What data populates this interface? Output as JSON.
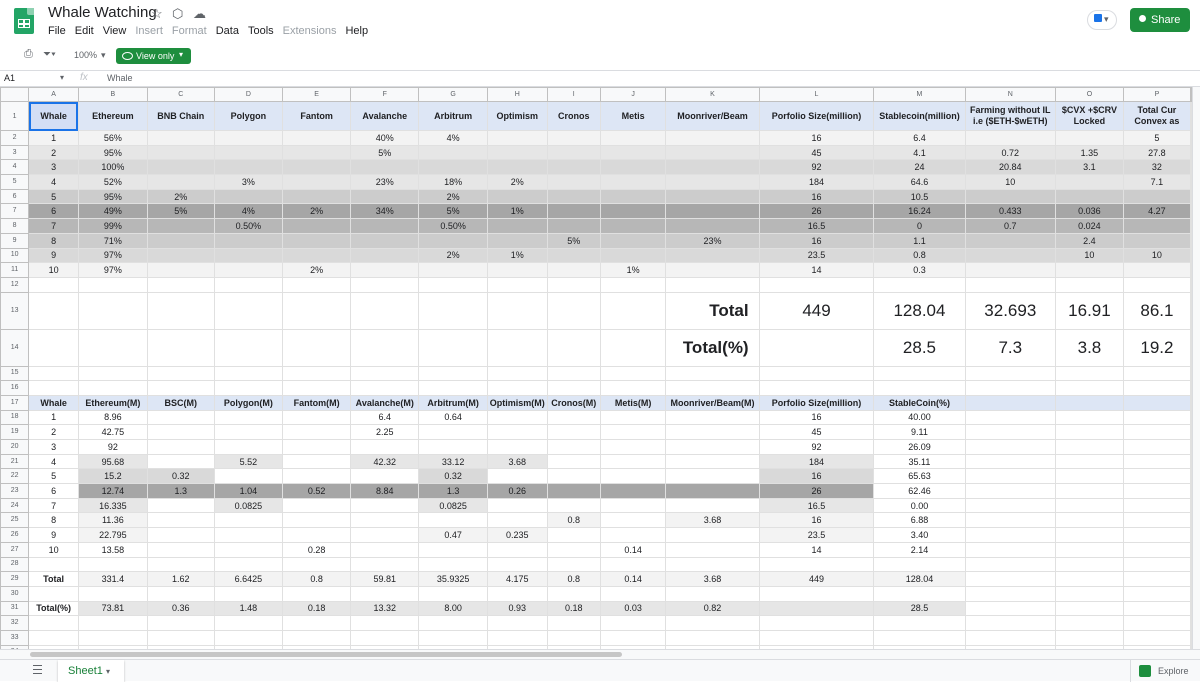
{
  "app": {
    "title": "Whale Watching",
    "menu": [
      "File",
      "Edit",
      "View",
      "Insert",
      "Format",
      "Data",
      "Tools",
      "Extensions",
      "Help"
    ],
    "share_label": "Share"
  },
  "toolbar": {
    "zoom": "100%",
    "view_mode": "View only"
  },
  "formula_bar": {
    "cell_ref": "A1",
    "fx": "fx",
    "content": "Whale"
  },
  "columns": [
    "A",
    "B",
    "C",
    "D",
    "E",
    "F",
    "G",
    "H",
    "I",
    "J",
    "K",
    "L",
    "M",
    "N",
    "O",
    "P"
  ],
  "table1": {
    "headers": [
      "Whale",
      "Ethereum",
      "BNB Chain",
      "Polygon",
      "Fantom",
      "Avalanche",
      "Arbitrum",
      "Optimism",
      "Cronos",
      "Metis",
      "Moonriver/Beam",
      "Porfolio Size(million)",
      "Stablecoin(million)",
      "Farming without IL i.e ($ETH-$wETH)",
      "$CVX +$CRV Locked",
      "Total Cur Convex as"
    ],
    "rows": [
      [
        "1",
        "56%",
        "",
        "",
        "",
        "40%",
        "4%",
        "",
        "",
        "",
        "",
        "16",
        "6.4",
        "",
        "",
        "5"
      ],
      [
        "2",
        "95%",
        "",
        "",
        "",
        "5%",
        "",
        "",
        "",
        "",
        "",
        "45",
        "4.1",
        "0.72",
        "1.35",
        "27.8"
      ],
      [
        "3",
        "100%",
        "",
        "",
        "",
        "",
        "",
        "",
        "",
        "",
        "",
        "92",
        "24",
        "20.84",
        "3.1",
        "32"
      ],
      [
        "4",
        "52%",
        "",
        "3%",
        "",
        "23%",
        "18%",
        "2%",
        "",
        "",
        "",
        "184",
        "64.6",
        "10",
        "",
        "7.1"
      ],
      [
        "5",
        "95%",
        "2%",
        "",
        "",
        "",
        "2%",
        "",
        "",
        "",
        "",
        "16",
        "10.5",
        "",
        "",
        ""
      ],
      [
        "6",
        "49%",
        "5%",
        "4%",
        "2%",
        "34%",
        "5%",
        "1%",
        "",
        "",
        "",
        "26",
        "16.24",
        "0.433",
        "0.036",
        "4.27"
      ],
      [
        "7",
        "99%",
        "",
        "0.50%",
        "",
        "",
        "0.50%",
        "",
        "",
        "",
        "",
        "16.5",
        "0",
        "0.7",
        "0.024",
        ""
      ],
      [
        "8",
        "71%",
        "",
        "",
        "",
        "",
        "",
        "",
        "5%",
        "",
        "23%",
        "16",
        "1.1",
        "",
        "2.4",
        ""
      ],
      [
        "9",
        "97%",
        "",
        "",
        "",
        "",
        "2%",
        "1%",
        "",
        "",
        "",
        "23.5",
        "0.8",
        "",
        "10",
        "10"
      ],
      [
        "10",
        "97%",
        "",
        "",
        "2%",
        "",
        "",
        "",
        "",
        "1%",
        "",
        "14",
        "0.3",
        "",
        "",
        ""
      ]
    ],
    "total_label": "Total",
    "total_values": [
      "449",
      "128.04",
      "32.693",
      "16.91",
      "86.1"
    ],
    "total_pct_label": "Total(%)",
    "total_pct_values": [
      "28.5",
      "7.3",
      "3.8",
      "19.2"
    ]
  },
  "table2": {
    "headers": [
      "Whale",
      "Ethereum(M)",
      "BSC(M)",
      "Polygon(M)",
      "Fantom(M)",
      "Avalanche(M)",
      "Arbitrum(M)",
      "Optimism(M)",
      "Cronos(M)",
      "Metis(M)",
      "Moonriver/Beam(M)",
      "Porfolio Size(million)",
      "StableCoin(%)"
    ],
    "rows": [
      [
        "1",
        "8.96",
        "",
        "",
        "",
        "6.4",
        "0.64",
        "",
        "",
        "",
        "",
        "16",
        "40.00"
      ],
      [
        "2",
        "42.75",
        "",
        "",
        "",
        "2.25",
        "",
        "",
        "",
        "",
        "",
        "45",
        "9.11"
      ],
      [
        "3",
        "92",
        "",
        "",
        "",
        "",
        "",
        "",
        "",
        "",
        "",
        "92",
        "26.09"
      ],
      [
        "4",
        "95.68",
        "",
        "5.52",
        "",
        "42.32",
        "33.12",
        "3.68",
        "",
        "",
        "",
        "184",
        "35.11"
      ],
      [
        "5",
        "15.2",
        "0.32",
        "",
        "",
        "",
        "0.32",
        "",
        "",
        "",
        "",
        "16",
        "65.63"
      ],
      [
        "6",
        "12.74",
        "1.3",
        "1.04",
        "0.52",
        "8.84",
        "1.3",
        "0.26",
        "",
        "",
        "",
        "26",
        "62.46"
      ],
      [
        "7",
        "16.335",
        "",
        "0.0825",
        "",
        "",
        "0.0825",
        "",
        "",
        "",
        "",
        "16.5",
        "0.00"
      ],
      [
        "8",
        "11.36",
        "",
        "",
        "",
        "",
        "",
        "",
        "0.8",
        "",
        "3.68",
        "16",
        "6.88"
      ],
      [
        "9",
        "22.795",
        "",
        "",
        "",
        "",
        "0.47",
        "0.235",
        "",
        "",
        "",
        "23.5",
        "3.40"
      ],
      [
        "10",
        "13.58",
        "",
        "",
        "0.28",
        "",
        "",
        "",
        "",
        "0.14",
        "",
        "14",
        "2.14"
      ]
    ],
    "total_row": [
      "Total",
      "331.4",
      "1.62",
      "6.6425",
      "0.8",
      "59.81",
      "35.9325",
      "4.175",
      "0.8",
      "0.14",
      "3.68",
      "449",
      "128.04"
    ],
    "total_pct_row": [
      "Total(%)",
      "73.81",
      "0.36",
      "1.48",
      "0.18",
      "13.32",
      "8.00",
      "0.93",
      "0.18",
      "0.03",
      "0.82",
      "",
      "28.5"
    ]
  },
  "bottom": {
    "sheet_tab": "Sheet1",
    "explore_label": "Explore"
  }
}
